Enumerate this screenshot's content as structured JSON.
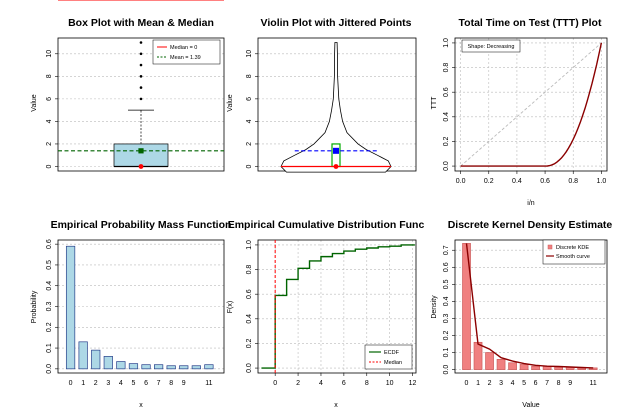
{
  "chart_data": [
    {
      "type": "box",
      "title": "Box Plot with Mean & Median",
      "xlabel": "",
      "ylabel": "Value",
      "ylim": [
        0,
        11
      ],
      "yticks": [
        0,
        2,
        4,
        6,
        8,
        10
      ],
      "box": {
        "q1": 0,
        "median": 0,
        "q3": 2,
        "whisker_low": 0,
        "whisker_high": 5
      },
      "outliers": [
        6,
        7,
        8,
        9,
        10,
        11
      ],
      "mean": 1.39,
      "colors": {
        "box": "#add8e6",
        "median": "#ff0000",
        "mean": "#006400"
      },
      "legend": {
        "position": "top-right",
        "entries": [
          "Median = 0",
          "Mean = 1.39"
        ]
      }
    },
    {
      "type": "violin",
      "title": "Violin Plot with Jittered Points",
      "xlabel": "",
      "ylabel": "Value",
      "ylim": [
        0,
        11
      ],
      "yticks": [
        0,
        2,
        4,
        6,
        8,
        10
      ],
      "median": 0,
      "mean": 1.39,
      "q1": 0,
      "q3": 2,
      "density_profile": [
        [
          -0.5,
          0.9
        ],
        [
          0,
          1.0
        ],
        [
          0.5,
          0.95
        ],
        [
          1,
          0.75
        ],
        [
          1.5,
          0.55
        ],
        [
          2,
          0.4
        ],
        [
          3,
          0.2
        ],
        [
          4,
          0.12
        ],
        [
          5,
          0.08
        ],
        [
          6,
          0.05
        ],
        [
          8,
          0.03
        ],
        [
          10,
          0.025
        ],
        [
          11,
          0.02
        ]
      ],
      "colors": {
        "median": "#ff0000",
        "mean": "#0000ff",
        "iqr_box": "#00aa00"
      }
    },
    {
      "type": "line",
      "title": "Total Time on Test (TTT) Plot",
      "xlabel": "i/n",
      "ylabel": "TTT",
      "xlim": [
        0,
        1
      ],
      "ylim": [
        0,
        1
      ],
      "xticks": [
        0.0,
        0.2,
        0.4,
        0.6,
        0.8,
        1.0
      ],
      "yticks": [
        0.0,
        0.2,
        0.4,
        0.6,
        0.8,
        1.0
      ],
      "annotation": "Shape: Decreasing",
      "series": [
        {
          "name": "TTT",
          "x": [
            0,
            0.6,
            0.7,
            0.8,
            0.9,
            1.0
          ],
          "y": [
            0,
            0,
            0.09,
            0.26,
            0.5,
            1.0
          ]
        },
        {
          "name": "diagonal",
          "x": [
            0,
            1
          ],
          "y": [
            0,
            1
          ]
        }
      ],
      "colors": {
        "ttt": "#8b0000",
        "diagonal": "#bbbbbb"
      }
    },
    {
      "type": "bar",
      "title": "Empirical Probability Mass Function",
      "xlabel": "x",
      "ylabel": "Probability",
      "ylim": [
        0,
        0.6
      ],
      "yticks": [
        0.0,
        0.1,
        0.2,
        0.3,
        0.4,
        0.5,
        0.6
      ],
      "categories": [
        0,
        1,
        2,
        3,
        4,
        5,
        6,
        7,
        8,
        9,
        10,
        11
      ],
      "tick_labels": [
        "0",
        "1",
        "2",
        "3",
        "4",
        "5",
        "6",
        "7",
        "8",
        "9",
        "",
        "11"
      ],
      "values": [
        0.59,
        0.13,
        0.09,
        0.06,
        0.035,
        0.025,
        0.02,
        0.02,
        0.015,
        0.015,
        0.015,
        0.02
      ],
      "colors": {
        "fill": "#add8e6",
        "stroke": "#27408b"
      }
    },
    {
      "type": "step",
      "title": "Empirical Cumulative Distribution Func",
      "xlabel": "x",
      "ylabel": "F(x)",
      "xlim": [
        -0.5,
        12
      ],
      "ylim": [
        0,
        1
      ],
      "xticks": [
        0,
        2,
        4,
        6,
        8,
        10,
        12
      ],
      "yticks": [
        0.0,
        0.2,
        0.4,
        0.6,
        0.8,
        1.0
      ],
      "x": [
        0,
        1,
        2,
        3,
        4,
        5,
        6,
        7,
        8,
        9,
        10,
        11
      ],
      "values": [
        0.59,
        0.72,
        0.81,
        0.87,
        0.905,
        0.93,
        0.95,
        0.965,
        0.975,
        0.985,
        0.99,
        1.0
      ],
      "median_line": 0,
      "legend": {
        "position": "bottom-right",
        "entries": [
          "ECDF",
          "Median"
        ]
      },
      "colors": {
        "ecdf": "#006400",
        "median": "#ff0000"
      }
    },
    {
      "type": "bar",
      "title": "Discrete Kernel Density Estimate",
      "xlabel": "Value",
      "ylabel": "Density",
      "ylim": [
        0,
        0.75
      ],
      "yticks": [
        0.0,
        0.1,
        0.2,
        0.3,
        0.4,
        0.5,
        0.6,
        0.7
      ],
      "categories": [
        0,
        1,
        2,
        3,
        4,
        5,
        6,
        7,
        8,
        9,
        10,
        11
      ],
      "tick_labels": [
        "0",
        "1",
        "2",
        "3",
        "4",
        "5",
        "6",
        "7",
        "8",
        "9",
        "",
        "11"
      ],
      "values": [
        0.74,
        0.16,
        0.1,
        0.06,
        0.04,
        0.03,
        0.02,
        0.02,
        0.015,
        0.015,
        0.01,
        0.01
      ],
      "smooth": [
        0.74,
        0.15,
        0.12,
        0.07,
        0.05,
        0.035,
        0.025,
        0.02,
        0.018,
        0.015,
        0.012,
        0.01
      ],
      "legend": {
        "position": "top-right",
        "entries": [
          "Discrete KDE",
          "Smooth curve"
        ]
      },
      "colors": {
        "fill": "#f08080",
        "stroke": "#cd5c5c",
        "smooth": "#8b0000"
      }
    }
  ]
}
